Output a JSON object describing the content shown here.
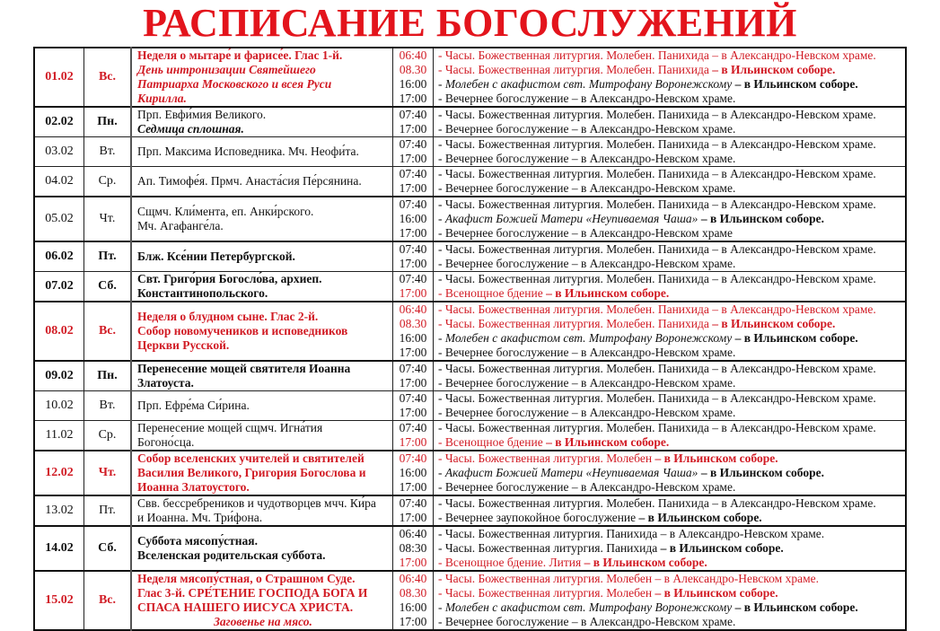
{
  "title": "РАСПИСАНИЕ БОГОСЛУЖЕНИЙ",
  "colors": {
    "accent_red": "#d11b24",
    "title_red": "#e3141c"
  },
  "rows": [
    {
      "date": "01.02",
      "day": "Вс.",
      "bold": true,
      "red": true,
      "feast": [
        {
          "text": "Неделя о мытаре́ и фарисе́е. Глас 1-й.",
          "style": "bold red"
        },
        {
          "text": "День интронизации Святейшего",
          "style": "bold ital red"
        },
        {
          "text": "Патриарха Московского и всея Руси",
          "style": "bold ital red"
        },
        {
          "text": "Кирилла.",
          "style": "bold ital red"
        }
      ],
      "services": [
        {
          "time": "06:40",
          "text": "- Часы. Божественная литургия. Молебен. Панихида",
          "place": " – в Александро-Невском храме.",
          "red": true
        },
        {
          "time": "08.30",
          "text": "- Часы. Божественная литургия. Молебен. Панихида",
          "place": " – в Ильинском соборе.",
          "red": true,
          "place_bold": true
        },
        {
          "time": "16:00",
          "text": "- Молебен с акафистом свт. Митрофану Воронежскому",
          "place": " – в Ильинском соборе.",
          "italic": true,
          "place_bold": true
        },
        {
          "time": "17:00",
          "text": "- Вечернее богослужение",
          "place": " – в Александро-Невском храме."
        }
      ]
    },
    {
      "date": "02.02",
      "day": "Пн.",
      "bold": true,
      "feast": [
        {
          "text": "Прп. Евфи́мия Великого.",
          "style": ""
        },
        {
          "text": "Седмица сплошная.",
          "style": "bold ital"
        }
      ],
      "services": [
        {
          "time": "07:40",
          "text": "- Часы. Божественная литургия. Молебен. Панихида",
          "place": " – в Александро-Невском храме."
        },
        {
          "time": "17:00",
          "text": "- Вечернее богослужение",
          "place": " – в Александро-Невском храме."
        }
      ]
    },
    {
      "date": "03.02",
      "day": "Вт.",
      "feast": [
        {
          "text": "Прп. Максима Исповедника. Мч. Неофи́та.",
          "style": ""
        }
      ],
      "services": [
        {
          "time": "07:40",
          "text": "- Часы. Божественная литургия. Молебен. Панихида",
          "place": " – в Александро-Невском храме."
        },
        {
          "time": "17:00",
          "text": "- Вечернее богослужение",
          "place": " – в Александро-Невском храме."
        }
      ]
    },
    {
      "date": "04.02",
      "day": "Ср.",
      "feast": [
        {
          "text": "Ап. Тимофе́я. Прмч. Анаста́сия Пе́рсянина.",
          "style": ""
        }
      ],
      "services": [
        {
          "time": "07:40",
          "text": "- Часы. Божественная литургия. Молебен. Панихида",
          "place": " – в Александро-Невском храме."
        },
        {
          "time": "17:00",
          "text": "- Вечернее богослужение",
          "place": " – в Александро-Невском храме."
        }
      ]
    },
    {
      "date": "05.02",
      "day": "Чт.",
      "feast": [
        {
          "text": "Сщмч. Кли́мента, еп. Анки́рского.",
          "style": ""
        },
        {
          "text": "Мч. Агафанге́ла.",
          "style": ""
        }
      ],
      "services": [
        {
          "time": "07:40",
          "text": "- Часы. Божественная литургия. Молебен. Панихида",
          "place": " – в Александро-Невском храме."
        },
        {
          "time": "16:00",
          "text": "- Акафист Божией Матери «Неупиваемая Чаша»",
          "place": " – в Ильинском соборе.",
          "italic": true,
          "place_bold": true
        },
        {
          "time": "17:00",
          "text": "- Вечернее богослужение",
          "place": " – в Александро-Невском храме"
        }
      ]
    },
    {
      "date": "06.02",
      "day": "Пт.",
      "bold": true,
      "feast": [
        {
          "text": "Блж. Ксе́нии Петербургской.",
          "style": "bold"
        }
      ],
      "services": [
        {
          "time": "07:40",
          "text": "- Часы. Божественная литургия. Молебен. Панихида",
          "place": " – в Александро-Невском храме."
        },
        {
          "time": "17:00",
          "text": "- Вечернее богослужение",
          "place": " – в Александро-Невском храме."
        }
      ]
    },
    {
      "date": "07.02",
      "day": "Сб.",
      "bold": true,
      "feast": [
        {
          "text": "Свт. Григо́рия Богосло́ва, архиеп.",
          "style": "bold"
        },
        {
          "text": "Константинопольского.",
          "style": "bold"
        }
      ],
      "services": [
        {
          "time": "07:40",
          "text": "- Часы. Божественная литургия. Молебен. Панихида",
          "place": " – в Александро-Невском храме."
        },
        {
          "time": "17:00",
          "text": "- Всенощное бдение",
          "place": " – в Ильинском соборе.",
          "red": true,
          "place_bold": true
        }
      ]
    },
    {
      "date": "08.02",
      "day": "Вс.",
      "bold": true,
      "red": true,
      "feast": [
        {
          "text": "Неделя о блудном сыне. Глас 2-й.",
          "style": "bold red"
        },
        {
          "text": "Собор новомучеников и исповедников",
          "style": "bold red"
        },
        {
          "text": "Церкви Русской.",
          "style": "bold red"
        }
      ],
      "services": [
        {
          "time": "06:40",
          "text": "- Часы. Божественная литургия. Молебен. Панихида",
          "place": " – в Александро-Невском храме.",
          "red": true
        },
        {
          "time": "08.30",
          "text": "- Часы. Божественная литургия. Молебен. Панихида",
          "place": " – в Ильинском соборе.",
          "red": true,
          "place_bold": true
        },
        {
          "time": "16:00",
          "text": "- Молебен с акафистом свт. Митрофану Воронежскому",
          "place": " – в Ильинском соборе.",
          "italic": true,
          "place_bold": true
        },
        {
          "time": "17:00",
          "text": "- Вечернее богослужение",
          "place": " – в Александро-Невском храме."
        }
      ]
    },
    {
      "date": "09.02",
      "day": "Пн.",
      "bold": true,
      "feast": [
        {
          "text": "Перенесение мощей святителя Иоанна",
          "style": "bold"
        },
        {
          "text": "Златоуста.",
          "style": "bold"
        }
      ],
      "services": [
        {
          "time": "07:40",
          "text": "- Часы. Божественная литургия. Молебен. Панихида",
          "place": " – в Александро-Невском храме."
        },
        {
          "time": "17:00",
          "text": "- Вечернее богослужение",
          "place": " – в Александро-Невском храме."
        }
      ]
    },
    {
      "date": "10.02",
      "day": "Вт.",
      "feast": [
        {
          "text": "Прп. Ефре́ма Си́рина.",
          "style": ""
        }
      ],
      "services": [
        {
          "time": "07:40",
          "text": "- Часы. Божественная литургия. Молебен. Панихида",
          "place": " – в Александро-Невском храме."
        },
        {
          "time": "17:00",
          "text": "- Вечернее богослужение",
          "place": " – в Александро-Невском храме."
        }
      ]
    },
    {
      "date": "11.02",
      "day": "Ср.",
      "feast": [
        {
          "text": "Перенесение мощей сщмч. Игна́тия",
          "style": ""
        },
        {
          "text": "Богоно́сца.",
          "style": ""
        }
      ],
      "services": [
        {
          "time": "07:40",
          "text": "- Часы. Божественная литургия. Молебен. Панихида",
          "place": " – в Александро-Невском храме."
        },
        {
          "time": "17:00",
          "text": "- Всенощное бдение",
          "place": " – в Ильинском соборе.",
          "red": true,
          "place_bold": true
        }
      ]
    },
    {
      "date": "12.02",
      "day": "Чт.",
      "bold": true,
      "red": true,
      "feast": [
        {
          "text": "Собор вселенских учителей и святителей",
          "style": "bold red"
        },
        {
          "text": "Василия Великого, Григория Богослова и",
          "style": "bold red"
        },
        {
          "text": "Иоанна Златоустого.",
          "style": "bold red"
        }
      ],
      "services": [
        {
          "time": "07:40",
          "text": "- Часы. Божественная литургия. Молебен",
          "place": " – в Ильинском соборе.",
          "red": true,
          "place_bold": true
        },
        {
          "time": "16:00",
          "text": "- Акафист Божией Матери «Неупиваемая Чаша»",
          "place": " – в Ильинском соборе.",
          "italic": true,
          "place_bold": true
        },
        {
          "time": "17:00",
          "text": "- Вечернее богослужение",
          "place": " – в Александро-Невском храме."
        }
      ]
    },
    {
      "date": "13.02",
      "day": "Пт.",
      "feast": [
        {
          "text": "Свв. бессребреников и чудотворцев мчч. Ки́ра",
          "style": ""
        },
        {
          "text": "и Иоанна. Мч. Три́фона.",
          "style": ""
        }
      ],
      "services": [
        {
          "time": "07:40",
          "text": "- Часы. Божественная литургия. Молебен. Панихида",
          "place": " – в Александро-Невском храме."
        },
        {
          "time": "17:00",
          "text": "- Вечернее заупокойное богослужение",
          "place": " – в Ильинском соборе.",
          "place_bold": true
        }
      ]
    },
    {
      "date": "14.02",
      "day": "Сб.",
      "bold": true,
      "feast": [
        {
          "text": "Суббота мясопу́стная.",
          "style": "bold"
        },
        {
          "text": "Вселенская родительская суббота.",
          "style": "bold"
        }
      ],
      "services": [
        {
          "time": "06:40",
          "text": "- Часы. Божественная литургия. Панихида",
          "place": " – в Александро-Невском храме."
        },
        {
          "time": "08:30",
          "text": "- Часы. Божественная литургия. Панихида",
          "place": " – в Ильинском соборе.",
          "place_bold": true
        },
        {
          "time": "17:00",
          "text": "- Всенощное бдение. Лития",
          "place": " – в Ильинском соборе.",
          "red": true,
          "place_bold": true
        }
      ]
    },
    {
      "date": "15.02",
      "day": "Вс.",
      "bold": true,
      "red": true,
      "feast": [
        {
          "text": "Неделя мясопу́стная, о Страшном Суде.",
          "style": "bold red"
        },
        {
          "text": "Глас 3-й. СРЕ́ТЕНИЕ ГОСПОДА БОГА И",
          "style": "bold red"
        },
        {
          "text": "СПАСА НАШЕГО ИИСУСА ХРИСТА.",
          "style": "bold red"
        },
        {
          "text": "Заговенье на мясо.",
          "style": "bold ital red center"
        }
      ],
      "services": [
        {
          "time": "06:40",
          "text": "- Часы. Божественная литургия. Молебен",
          "place": " – в Александро-Невском храме.",
          "red": true
        },
        {
          "time": "08.30",
          "text": "- Часы. Божественная литургия. Молебен",
          "place": " – в Ильинском соборе.",
          "red": true,
          "place_bold": true
        },
        {
          "time": "16:00",
          "text": "- Молебен с акафистом свт. Митрофану Воронежскому",
          "place": " – в Ильинском соборе.",
          "italic": true,
          "place_bold": true
        },
        {
          "time": "17:00",
          "text": "- Вечернее богослужение",
          "place": " – в Александро-Невском храме."
        }
      ]
    }
  ]
}
